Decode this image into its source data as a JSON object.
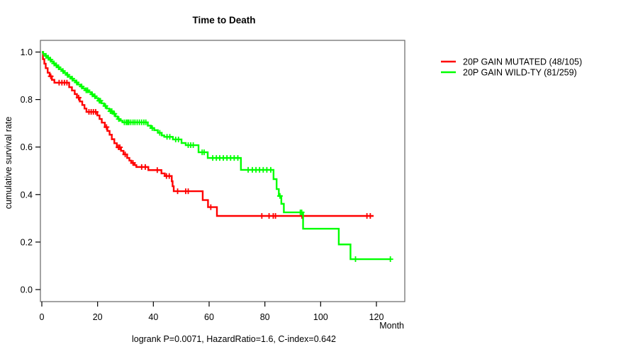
{
  "chart_data": {
    "type": "line",
    "subtype": "kaplan-meier-step",
    "title": "Time to Death",
    "xlabel": "Month",
    "ylabel": "cumulative survival rate",
    "footer": "logrank P=0.0071, HazardRatio=1.6, C-index=0.642",
    "xlim": [
      0,
      130
    ],
    "ylim": [
      0,
      1
    ],
    "xticks": [
      0,
      20,
      40,
      60,
      80,
      100,
      120
    ],
    "yticks": [
      0,
      0.2,
      0.4,
      0.6,
      0.8,
      1
    ],
    "grid": false,
    "legend_position": "right-outside",
    "series": [
      {
        "name": "20P GAIN MUTATED (48/105)",
        "color": "#ff0000",
        "steps": [
          [
            0,
            1.0
          ],
          [
            0.4,
            0.97
          ],
          [
            0.9,
            0.951
          ],
          [
            1.4,
            0.932
          ],
          [
            2.1,
            0.913
          ],
          [
            2.8,
            0.898
          ],
          [
            3.6,
            0.883
          ],
          [
            4.5,
            0.871
          ],
          [
            9.8,
            0.852
          ],
          [
            10.8,
            0.838
          ],
          [
            11.8,
            0.823
          ],
          [
            12.6,
            0.808
          ],
          [
            13.6,
            0.792
          ],
          [
            14.5,
            0.777
          ],
          [
            15.3,
            0.762
          ],
          [
            16.0,
            0.748
          ],
          [
            19.9,
            0.733
          ],
          [
            20.7,
            0.718
          ],
          [
            21.5,
            0.703
          ],
          [
            22.6,
            0.684
          ],
          [
            23.5,
            0.668
          ],
          [
            24.3,
            0.652
          ],
          [
            25.1,
            0.633
          ],
          [
            26.0,
            0.616
          ],
          [
            26.9,
            0.599
          ],
          [
            28.4,
            0.584
          ],
          [
            29.3,
            0.569
          ],
          [
            30.6,
            0.554
          ],
          [
            31.4,
            0.543
          ],
          [
            32.1,
            0.533
          ],
          [
            33.2,
            0.524
          ],
          [
            33.9,
            0.516
          ],
          [
            38.2,
            0.503
          ],
          [
            42.9,
            0.489
          ],
          [
            44.1,
            0.478
          ],
          [
            46.6,
            0.456
          ],
          [
            46.9,
            0.435
          ],
          [
            47.3,
            0.414
          ],
          [
            57.7,
            0.377
          ],
          [
            59.6,
            0.347
          ],
          [
            62.8,
            0.31
          ],
          [
            119,
            0.31
          ]
        ],
        "censors": [
          [
            3.2,
            0.898
          ],
          [
            6.2,
            0.871
          ],
          [
            7.2,
            0.871
          ],
          [
            8.1,
            0.871
          ],
          [
            9.0,
            0.871
          ],
          [
            13.2,
            0.808
          ],
          [
            16.9,
            0.748
          ],
          [
            17.7,
            0.748
          ],
          [
            18.5,
            0.748
          ],
          [
            19.3,
            0.748
          ],
          [
            23.2,
            0.684
          ],
          [
            27.5,
            0.599
          ],
          [
            28.0,
            0.599
          ],
          [
            29.9,
            0.569
          ],
          [
            32.7,
            0.533
          ],
          [
            35.8,
            0.516
          ],
          [
            37.1,
            0.516
          ],
          [
            41.4,
            0.503
          ],
          [
            44.7,
            0.478
          ],
          [
            45.7,
            0.478
          ],
          [
            48.7,
            0.414
          ],
          [
            51.6,
            0.414
          ],
          [
            52.5,
            0.414
          ],
          [
            60.6,
            0.347
          ],
          [
            78.9,
            0.31
          ],
          [
            81.5,
            0.31
          ],
          [
            83.0,
            0.31
          ],
          [
            83.8,
            0.31
          ],
          [
            93.3,
            0.31
          ],
          [
            116.6,
            0.31
          ],
          [
            117.8,
            0.31
          ]
        ]
      },
      {
        "name": "20P GAIN WILD-TY (81/259)",
        "color": "#00ff00",
        "steps": [
          [
            0,
            1.0
          ],
          [
            0.5,
            0.992
          ],
          [
            1.2,
            0.984
          ],
          [
            2.0,
            0.976
          ],
          [
            2.7,
            0.968
          ],
          [
            3.4,
            0.96
          ],
          [
            4.1,
            0.952
          ],
          [
            4.9,
            0.944
          ],
          [
            5.6,
            0.936
          ],
          [
            6.4,
            0.928
          ],
          [
            7.2,
            0.92
          ],
          [
            8.0,
            0.912
          ],
          [
            8.8,
            0.904
          ],
          [
            9.6,
            0.896
          ],
          [
            10.4,
            0.888
          ],
          [
            11.2,
            0.88
          ],
          [
            12.1,
            0.872
          ],
          [
            13.0,
            0.863
          ],
          [
            13.9,
            0.855
          ],
          [
            14.7,
            0.847
          ],
          [
            15.5,
            0.839
          ],
          [
            16.9,
            0.831
          ],
          [
            17.7,
            0.822
          ],
          [
            18.6,
            0.814
          ],
          [
            19.4,
            0.806
          ],
          [
            20.2,
            0.795
          ],
          [
            21.4,
            0.784
          ],
          [
            22.3,
            0.773
          ],
          [
            23.3,
            0.762
          ],
          [
            24.2,
            0.751
          ],
          [
            25.5,
            0.74
          ],
          [
            26.4,
            0.729
          ],
          [
            27.2,
            0.718
          ],
          [
            28.1,
            0.711
          ],
          [
            28.9,
            0.704
          ],
          [
            38.0,
            0.69
          ],
          [
            39.1,
            0.68
          ],
          [
            40.3,
            0.671
          ],
          [
            41.6,
            0.66
          ],
          [
            43.0,
            0.649
          ],
          [
            43.9,
            0.643
          ],
          [
            47.0,
            0.632
          ],
          [
            50.1,
            0.617
          ],
          [
            51.6,
            0.608
          ],
          [
            56.2,
            0.578
          ],
          [
            59.5,
            0.554
          ],
          [
            71.4,
            0.504
          ],
          [
            83.1,
            0.465
          ],
          [
            84.2,
            0.423
          ],
          [
            85.0,
            0.394
          ],
          [
            85.9,
            0.361
          ],
          [
            86.8,
            0.325
          ],
          [
            93.7,
            0.256
          ],
          [
            106.5,
            0.19
          ],
          [
            110.7,
            0.128
          ],
          [
            125.2,
            0.128
          ]
        ],
        "censors": [
          [
            1.5,
            0.984
          ],
          [
            2.3,
            0.976
          ],
          [
            3.1,
            0.968
          ],
          [
            4.4,
            0.952
          ],
          [
            5.2,
            0.944
          ],
          [
            6.0,
            0.936
          ],
          [
            7.6,
            0.92
          ],
          [
            9.2,
            0.904
          ],
          [
            10.9,
            0.888
          ],
          [
            12.5,
            0.872
          ],
          [
            14.3,
            0.855
          ],
          [
            15.9,
            0.839
          ],
          [
            16.4,
            0.839
          ],
          [
            18.1,
            0.822
          ],
          [
            19.0,
            0.814
          ],
          [
            20.6,
            0.795
          ],
          [
            21.0,
            0.795
          ],
          [
            22.8,
            0.773
          ],
          [
            24.6,
            0.751
          ],
          [
            25.1,
            0.751
          ],
          [
            26.0,
            0.74
          ],
          [
            27.6,
            0.718
          ],
          [
            29.6,
            0.704
          ],
          [
            30.3,
            0.704
          ],
          [
            30.8,
            0.704
          ],
          [
            31.2,
            0.704
          ],
          [
            31.9,
            0.704
          ],
          [
            32.7,
            0.704
          ],
          [
            33.4,
            0.704
          ],
          [
            34.2,
            0.704
          ],
          [
            35.0,
            0.704
          ],
          [
            35.8,
            0.704
          ],
          [
            36.6,
            0.704
          ],
          [
            37.3,
            0.704
          ],
          [
            39.6,
            0.68
          ],
          [
            42.3,
            0.66
          ],
          [
            44.9,
            0.643
          ],
          [
            45.9,
            0.643
          ],
          [
            48.0,
            0.632
          ],
          [
            49.0,
            0.632
          ],
          [
            52.5,
            0.608
          ],
          [
            53.4,
            0.608
          ],
          [
            54.3,
            0.608
          ],
          [
            57.5,
            0.578
          ],
          [
            58.2,
            0.578
          ],
          [
            61.3,
            0.554
          ],
          [
            62.6,
            0.554
          ],
          [
            63.8,
            0.554
          ],
          [
            65.1,
            0.554
          ],
          [
            66.4,
            0.554
          ],
          [
            67.7,
            0.554
          ],
          [
            69.0,
            0.554
          ],
          [
            70.3,
            0.554
          ],
          [
            74.0,
            0.504
          ],
          [
            75.5,
            0.504
          ],
          [
            76.8,
            0.504
          ],
          [
            78.1,
            0.504
          ],
          [
            79.4,
            0.504
          ],
          [
            80.7,
            0.504
          ],
          [
            82.1,
            0.504
          ],
          [
            85.4,
            0.394
          ],
          [
            92.7,
            0.325
          ],
          [
            93.2,
            0.325
          ],
          [
            112.5,
            0.128
          ],
          [
            125.0,
            0.128
          ]
        ]
      }
    ]
  }
}
